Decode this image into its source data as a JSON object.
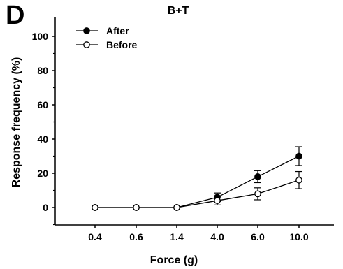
{
  "panel_label": "D",
  "chart_data": {
    "type": "line",
    "title": "B+T",
    "xlabel": "Force (g)",
    "ylabel": "Response frequency (%)",
    "categories": [
      "0.4",
      "0.6",
      "1.4",
      "4.0",
      "6.0",
      "10.0"
    ],
    "ylim": [
      -10,
      110
    ],
    "yticks": [
      "0",
      "20",
      "40",
      "60",
      "80",
      "100"
    ],
    "grid": false,
    "legend_position": "top-left",
    "series": [
      {
        "name": "After",
        "marker": "filled-circle",
        "color": "#000000",
        "values": [
          0,
          0,
          0,
          6,
          18,
          30
        ],
        "errors": [
          0,
          0,
          0,
          2.5,
          3.5,
          5.5
        ]
      },
      {
        "name": "Before",
        "marker": "open-circle",
        "color": "#000000",
        "values": [
          0,
          0,
          0,
          4,
          8,
          16
        ],
        "errors": [
          0,
          0,
          0,
          2.5,
          3.5,
          5
        ]
      }
    ]
  }
}
